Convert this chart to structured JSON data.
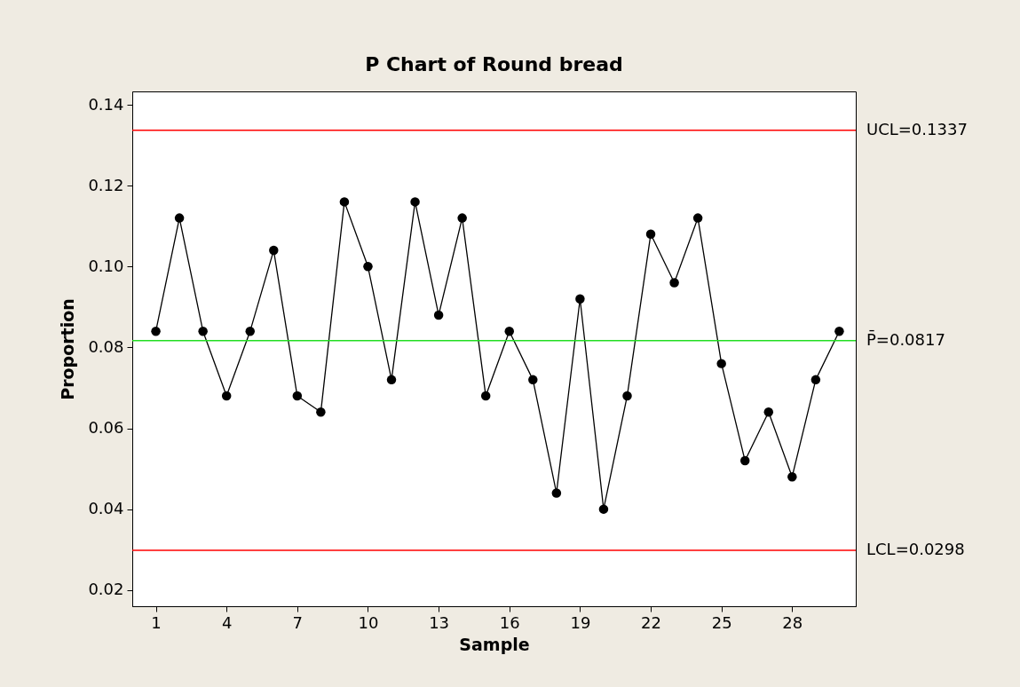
{
  "chart_data": {
    "type": "line",
    "title": "P Chart of Round bread",
    "xlabel": "Sample",
    "ylabel": "Proportion",
    "x": [
      1,
      2,
      3,
      4,
      5,
      6,
      7,
      8,
      9,
      10,
      11,
      12,
      13,
      14,
      15,
      16,
      17,
      18,
      19,
      20,
      21,
      22,
      23,
      24,
      25,
      26,
      27,
      28,
      29,
      30
    ],
    "series": [
      {
        "color": "#000000",
        "values": [
          0.084,
          0.112,
          0.084,
          0.068,
          0.084,
          0.104,
          0.068,
          0.064,
          0.116,
          0.1,
          0.072,
          0.116,
          0.088,
          0.112,
          0.068,
          0.084,
          0.072,
          0.044,
          0.092,
          0.04,
          0.068,
          0.108,
          0.096,
          0.112,
          0.076,
          0.052,
          0.064,
          0.048,
          0.072,
          0.084
        ]
      }
    ],
    "xlim": [
      0,
      30.7
    ],
    "xticks": [
      1,
      4,
      7,
      10,
      13,
      16,
      19,
      22,
      25,
      28
    ],
    "ylim": [
      0.016,
      0.1433
    ],
    "yticks": [
      0.02,
      0.04,
      0.06,
      0.08,
      {
        "value": 0.1,
        "label": "0.10"
      },
      0.12,
      0.14
    ],
    "ref_lines": [
      {
        "axis": "y",
        "value": 0.1337,
        "label": "UCL=0.1337",
        "color": "#ff0000"
      },
      {
        "axis": "y",
        "value": 0.0817,
        "label": "P̄=0.0817",
        "color": "#22dd22"
      },
      {
        "axis": "y",
        "value": 0.0298,
        "label": "LCL=0.0298",
        "color": "#ff0000"
      }
    ],
    "marker": "circle",
    "line_style": "solid",
    "grid": false
  }
}
